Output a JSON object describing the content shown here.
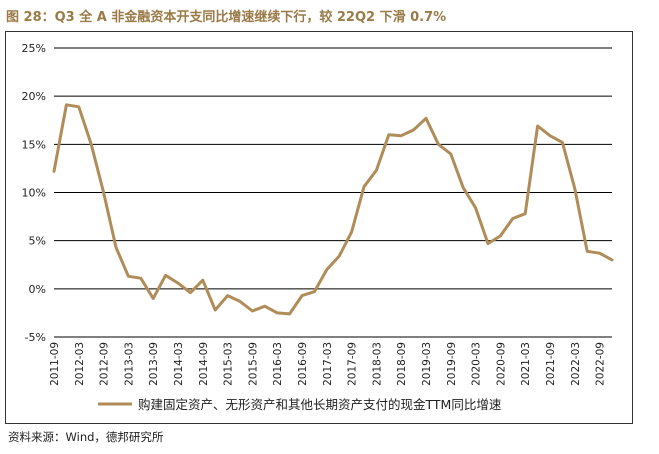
{
  "title": "图 28：Q3 全 A 非金融资本开支同比增速继续下行，较 22Q2 下滑 0.7%",
  "source": "资料来源：Wind，德邦研究所",
  "colors": {
    "line": "#b08c58",
    "title": "#9a7a47",
    "grid": "#000000",
    "text": "#222222"
  },
  "chart_data": {
    "type": "line",
    "title": "图 28：Q3 全 A 非金融资本开支同比增速继续下行，较 22Q2 下滑 0.7%",
    "xlabel": "",
    "ylabel": "",
    "ylim": [
      -5,
      25
    ],
    "yticks": [
      "-5%",
      "0%",
      "5%",
      "10%",
      "15%",
      "20%",
      "25%"
    ],
    "ytick_values": [
      -5,
      0,
      5,
      10,
      15,
      20,
      25
    ],
    "xtick_labels": [
      "2011-09",
      "2012-03",
      "2012-09",
      "2013-03",
      "2013-09",
      "2014-03",
      "2014-09",
      "2015-03",
      "2015-09",
      "2016-03",
      "2016-09",
      "2017-03",
      "2017-09",
      "2018-03",
      "2018-09",
      "2019-03",
      "2019-09",
      "2020-03",
      "2020-09",
      "2021-03",
      "2021-09",
      "2022-03",
      "2022-09"
    ],
    "legend": "bottom",
    "series": [
      {
        "name": "购建固定资产、无形资产和其他长期资产支付的现金TTM同比增速",
        "values": [
          12.2,
          19.1,
          18.9,
          15.0,
          10.0,
          4.3,
          1.3,
          1.1,
          -1.0,
          1.4,
          0.6,
          -0.4,
          0.9,
          -2.2,
          -0.7,
          -1.3,
          -2.3,
          -1.8,
          -2.5,
          -2.6,
          -0.7,
          -0.3,
          2.0,
          3.4,
          5.9,
          10.6,
          12.3,
          16.0,
          15.9,
          16.5,
          17.7,
          15.0,
          14.0,
          10.5,
          8.4,
          4.7,
          5.5,
          7.3,
          7.8,
          16.9,
          15.9,
          15.2,
          10.4,
          3.9,
          3.7,
          3.0
        ]
      }
    ]
  }
}
